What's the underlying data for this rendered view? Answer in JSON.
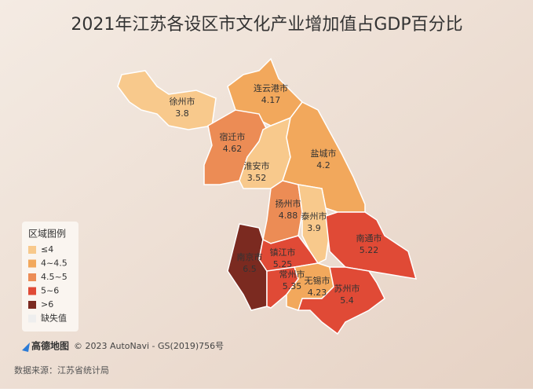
{
  "title": "2021年江苏各设区市文化产业增加值占GDP百分比",
  "regions": [
    {
      "name": "徐州市",
      "value": 3.8,
      "color": "#f8c98c"
    },
    {
      "name": "连云港市",
      "value": 4.17,
      "color": "#f2a85c"
    },
    {
      "name": "宿迁市",
      "value": 4.62,
      "color": "#ec8c55"
    },
    {
      "name": "淮安市",
      "value": 3.52,
      "color": "#f8c98c"
    },
    {
      "name": "盐城市",
      "value": 4.2,
      "color": "#f2a85c"
    },
    {
      "name": "扬州市",
      "value": 4.88,
      "color": "#ec8c55"
    },
    {
      "name": "泰州市",
      "value": 3.9,
      "color": "#f8c98c"
    },
    {
      "name": "南通市",
      "value": 5.22,
      "color": "#e04a36"
    },
    {
      "name": "南京市",
      "value": 6.5,
      "color": "#7b2a20"
    },
    {
      "name": "镇江市",
      "value": 5.25,
      "color": "#e04a36"
    },
    {
      "name": "常州市",
      "value": 5.35,
      "color": "#e04a36"
    },
    {
      "name": "无锡市",
      "value": 4.23,
      "color": "#f2a85c"
    },
    {
      "name": "苏州市",
      "value": 5.4,
      "color": "#e04a36"
    }
  ],
  "legend": {
    "title": "区域图例",
    "items": [
      {
        "label": "≤4",
        "color": "#f8c98c"
      },
      {
        "label": "4~4.5",
        "color": "#f2a85c"
      },
      {
        "label": "4.5~5",
        "color": "#ec8c55"
      },
      {
        "label": "5~6",
        "color": "#e04a36"
      },
      {
        "label": ">6",
        "color": "#7b2a20"
      },
      {
        "label": "缺失值",
        "color": "#eeeeee"
      }
    ]
  },
  "attribution": {
    "logo": "高德地图",
    "text": "© 2023 AutoNavi - GS(2019)756号"
  },
  "source": "数据来源：江苏省统计局"
}
